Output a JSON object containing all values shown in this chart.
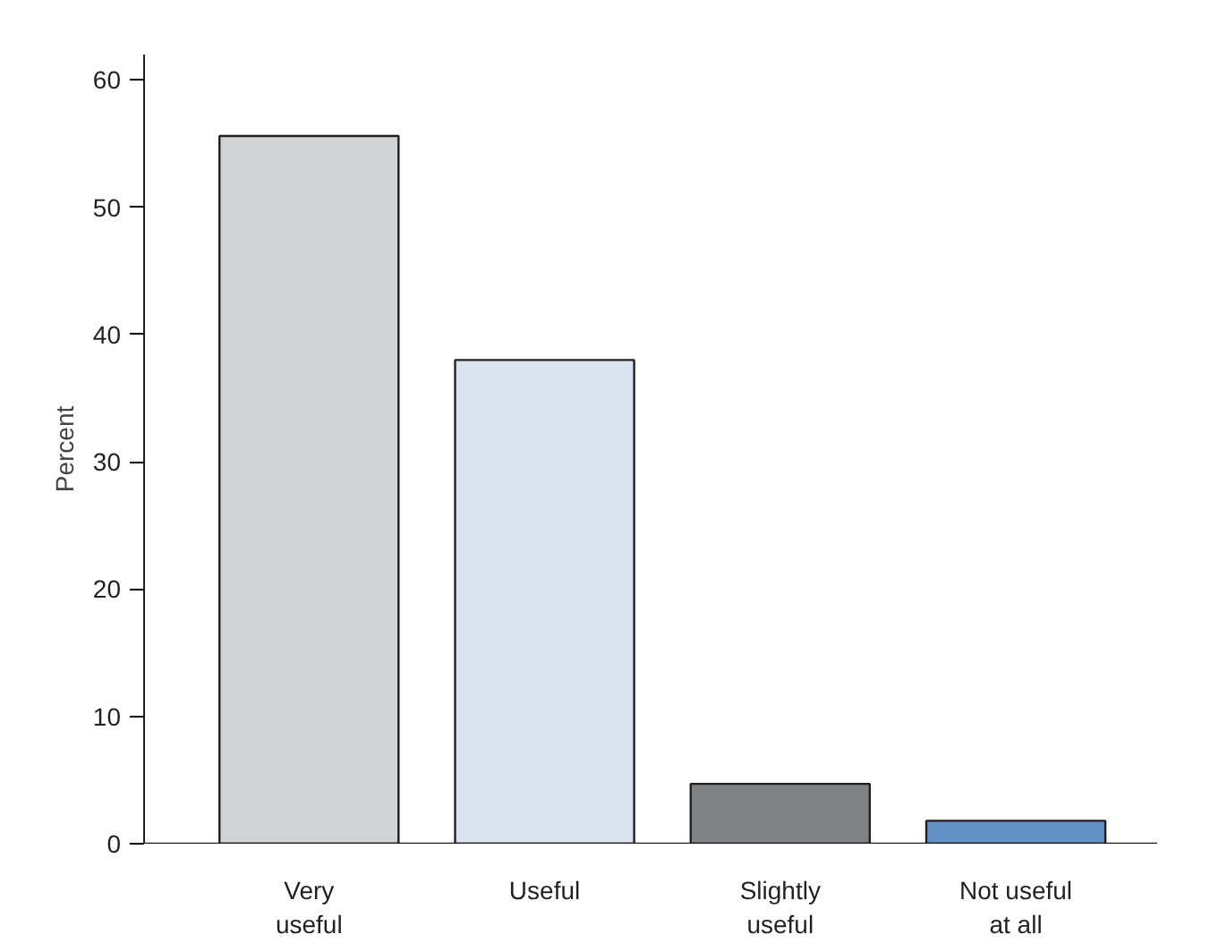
{
  "chart_data": {
    "type": "bar",
    "ylabel": "Percent",
    "categories": [
      "Very\nuseful",
      "Useful",
      "Slightly\nuseful",
      "Not useful\nat all"
    ],
    "values": [
      55.6,
      38.0,
      4.7,
      1.8
    ],
    "colors": [
      "#d1d2d4",
      "#dce3f0",
      "#808285",
      "#6393c4"
    ],
    "ylim": [
      0,
      62
    ],
    "yticks": [
      0,
      10,
      20,
      30,
      40,
      50,
      60
    ],
    "grid": false
  }
}
